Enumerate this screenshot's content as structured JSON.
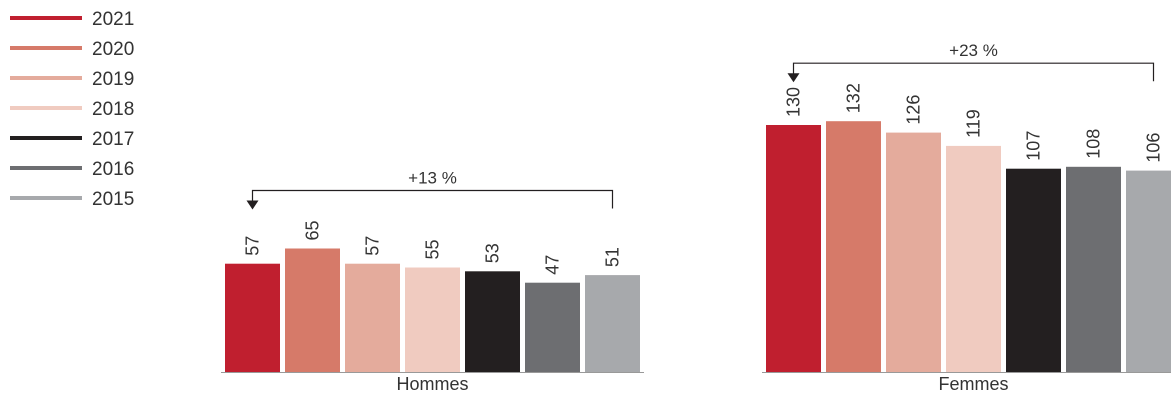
{
  "chart_data": {
    "type": "bar",
    "categories": [
      "Hommes",
      "Femmes"
    ],
    "series": [
      {
        "name": "2021",
        "color": "#c01f2f",
        "values": [
          57,
          130
        ]
      },
      {
        "name": "2020",
        "color": "#d67a69",
        "values": [
          65,
          132
        ]
      },
      {
        "name": "2019",
        "color": "#e4ab9c",
        "values": [
          57,
          126
        ]
      },
      {
        "name": "2018",
        "color": "#f0cbc0",
        "values": [
          55,
          119
        ]
      },
      {
        "name": "2017",
        "color": "#231f20",
        "values": [
          53,
          107
        ]
      },
      {
        "name": "2016",
        "color": "#6d6e71",
        "values": [
          47,
          108
        ]
      },
      {
        "name": "2015",
        "color": "#a7a9ac",
        "values": [
          51,
          106
        ]
      }
    ],
    "annotations": [
      {
        "category": "Hommes",
        "text": "+13 %"
      },
      {
        "category": "Femmes",
        "text": "+23 %"
      }
    ],
    "legend": "top-left",
    "grid": false
  }
}
